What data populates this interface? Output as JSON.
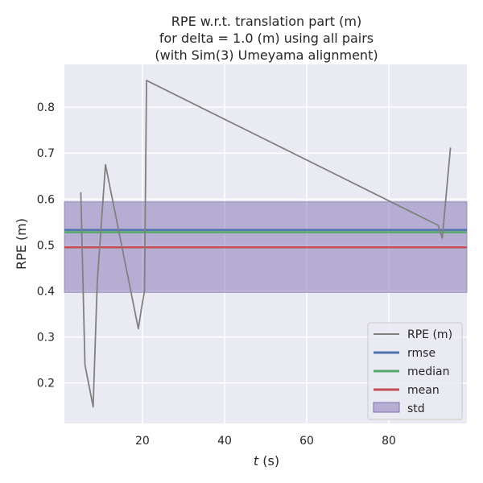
{
  "chart_data": {
    "type": "line",
    "title": [
      "RPE w.r.t. translation part (m)",
      "for delta = 1.0 (m) using all pairs",
      "(with Sim(3) Umeyama alignment)"
    ],
    "xlabel_italic": "t",
    "xlabel_rest": " (s)",
    "ylabel": "RPE (m)",
    "xlim": [
      1,
      99
    ],
    "ylim": [
      0.112,
      0.893
    ],
    "xticks": [
      20,
      40,
      60,
      80
    ],
    "yticks": [
      0.2,
      0.3,
      0.4,
      0.5,
      0.6,
      0.7,
      0.8
    ],
    "grid": true,
    "legend_position": "bottom-right",
    "series": [
      {
        "name": "RPE (m)",
        "color": "#808080",
        "x": [
          5,
          6,
          8,
          9,
          11,
          19,
          20,
          20.5,
          21,
          92,
          93,
          95
        ],
        "y": [
          0.615,
          0.24,
          0.148,
          0.42,
          0.675,
          0.318,
          0.375,
          0.4,
          0.858,
          0.543,
          0.515,
          0.712
        ]
      }
    ],
    "stats": {
      "rmse": {
        "name": "rmse",
        "value": 0.533,
        "color": "#4c72b0"
      },
      "median": {
        "name": "median",
        "value": 0.528,
        "color": "#55a868"
      },
      "mean": {
        "name": "mean",
        "value": 0.495,
        "color": "#c44e52"
      },
      "std": {
        "name": "std",
        "low": 0.397,
        "high": 0.594,
        "color": "#8172b2"
      }
    }
  }
}
